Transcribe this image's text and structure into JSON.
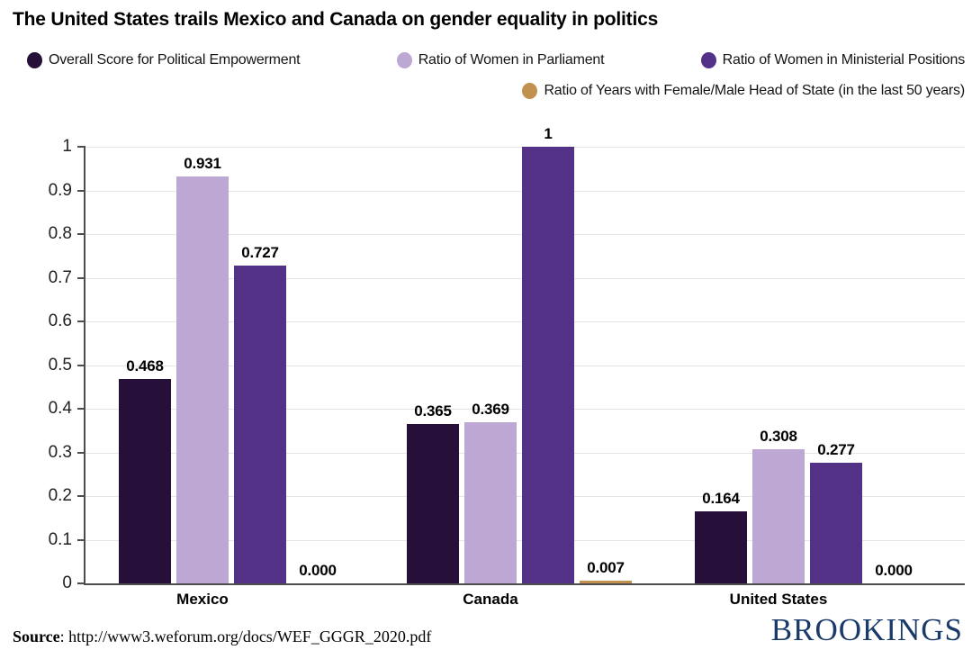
{
  "title": "The United States trails Mexico and Canada on gender equality in politics",
  "chart_data": {
    "type": "bar",
    "title": "The United States trails Mexico and Canada on gender equality in politics",
    "categories": [
      "Mexico",
      "Canada",
      "United States"
    ],
    "series": [
      {
        "name": "Overall Score for Political Empowerment",
        "color": "#26103a",
        "values": [
          0.468,
          0.365,
          0.164
        ],
        "labels": [
          "0.468",
          "0.365",
          "0.164"
        ]
      },
      {
        "name": "Ratio of Women in Parliament",
        "color": "#bda8d4",
        "values": [
          0.931,
          0.369,
          0.308
        ],
        "labels": [
          "0.931",
          "0.369",
          "0.308"
        ]
      },
      {
        "name": "Ratio of Women in Ministerial Positions",
        "color": "#533187",
        "values": [
          0.727,
          1,
          0.277
        ],
        "labels": [
          "0.727",
          "1",
          "0.277"
        ]
      },
      {
        "name": "Ratio of Years with Female/Male Head of State (in the last 50 years)",
        "color": "#c3914f",
        "values": [
          0,
          0.007,
          0
        ],
        "labels": [
          "0.000",
          "0.007",
          "0.000"
        ]
      }
    ],
    "xlabel": "",
    "ylabel": "",
    "ylim": [
      0,
      1
    ],
    "yticks": [
      1,
      0.9,
      0.8,
      0.7,
      0.6,
      0.5,
      0.4,
      0.3,
      0.2,
      0.1,
      0
    ],
    "ytick_labels": [
      "1",
      "0.9",
      "0.8",
      "0.7",
      "0.6",
      "0.5",
      "0.4",
      "0.3",
      "0.2",
      "0.1",
      "0"
    ],
    "grid": true,
    "legend_position": "top"
  },
  "footer": {
    "source_label": "Source",
    "source_rest": ": http://www3.weforum.org/docs/WEF_GGGR_2020.pdf",
    "logo_text": "BROOKINGS",
    "logo_color": "#1a3a69"
  },
  "style_colors": {
    "axis": "#4d4d4f",
    "gridline": "#e4e4e4"
  }
}
